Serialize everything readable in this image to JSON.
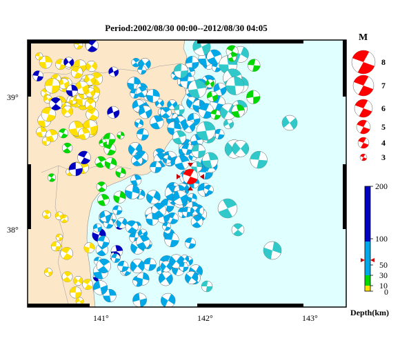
{
  "title": "Period:2002/08/30 00:00--2012/08/30 04:05",
  "axes": {
    "lon_ticks": [
      "141°",
      "142°",
      "143°"
    ],
    "lat_ticks": [
      "39°",
      "38°"
    ]
  },
  "magnitude_legend": {
    "header": "M",
    "items": [
      "8",
      "7",
      "6",
      "5",
      "4",
      "3"
    ]
  },
  "depth_legend": {
    "label": "Depth(km)",
    "ticks": [
      "200",
      "100",
      "50",
      "30",
      "10",
      "0"
    ],
    "colors": {
      "0-10": "#ffe000",
      "10-30": "#00d800",
      "30-100": "#00a8e8",
      "100-200": "#0000c0"
    },
    "marker_depth": 60
  },
  "colors": {
    "land": "#fde7c9",
    "sea": "#e0ffff",
    "highlight_event": "#ff0000",
    "shallow_sea_event": "#30c8c8"
  }
}
